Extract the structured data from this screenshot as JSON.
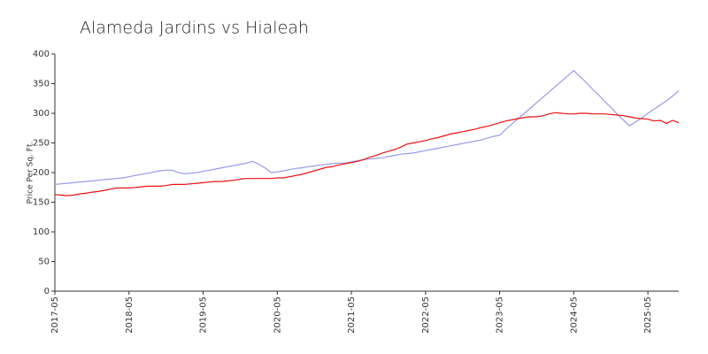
{
  "chart_data": {
    "type": "line",
    "title": "Alameda Jardins vs Hialeah",
    "y_label": "Price Per Sq. Ft.",
    "categories": [
      "2017-05",
      null,
      null,
      null,
      null,
      null,
      null,
      null,
      null,
      null,
      null,
      null,
      "2018-05",
      null,
      null,
      null,
      null,
      null,
      null,
      null,
      null,
      null,
      null,
      null,
      "2019-05",
      null,
      null,
      null,
      null,
      null,
      null,
      null,
      null,
      null,
      null,
      null,
      "2020-05",
      null,
      null,
      null,
      null,
      null,
      null,
      null,
      null,
      null,
      null,
      null,
      "2021-05",
      null,
      null,
      null,
      null,
      null,
      null,
      null,
      null,
      null,
      null,
      null,
      "2022-05",
      null,
      null,
      null,
      null,
      null,
      null,
      null,
      null,
      null,
      null,
      null,
      "2023-05",
      null,
      null,
      null,
      null,
      null,
      null,
      null,
      null,
      null,
      null,
      null,
      "2024-05",
      null,
      null,
      null,
      null,
      null,
      null,
      null,
      null,
      null,
      null,
      null,
      "2025-05",
      null,
      null,
      null,
      null,
      null
    ],
    "series": [
      {
        "color": "#9999ee",
        "values": [
          180,
          181,
          182,
          183,
          184,
          185,
          186,
          187,
          188,
          189,
          190,
          191,
          193,
          195,
          197,
          199,
          201,
          203,
          204,
          204,
          200,
          198,
          199,
          200,
          202,
          204,
          206,
          208,
          210,
          212,
          214,
          216,
          219,
          214,
          208,
          200,
          201,
          203,
          205,
          207,
          208,
          210,
          211,
          213,
          214,
          215,
          216,
          216,
          218,
          220,
          222,
          223,
          224,
          225,
          227,
          229,
          231,
          232,
          233,
          235,
          237,
          239,
          241,
          243,
          245,
          247,
          249,
          251,
          253,
          255,
          258,
          261,
          263,
          273,
          282,
          291,
          300,
          309,
          318,
          327,
          336,
          345,
          354,
          363,
          372,
          362,
          352,
          341,
          331,
          320,
          310,
          299,
          289,
          279,
          285,
          292,
          300,
          307,
          314,
          321,
          329,
          338
        ]
      },
      {
        "color": "#ee1111",
        "values": [
          163,
          162,
          161,
          162,
          164,
          165,
          167,
          168,
          170,
          172,
          174,
          174,
          174,
          175,
          176,
          177,
          177,
          177,
          178,
          180,
          180,
          180,
          181,
          182,
          183,
          184,
          185,
          185,
          186,
          187,
          189,
          190,
          190,
          190,
          190,
          190,
          191,
          191,
          193,
          195,
          197,
          200,
          203,
          206,
          209,
          210,
          213,
          215,
          217,
          219,
          222,
          226,
          229,
          233,
          236,
          239,
          243,
          248,
          250,
          252,
          254,
          257,
          259,
          262,
          265,
          267,
          269,
          271,
          273,
          276,
          278,
          281,
          284,
          287,
          289,
          291,
          293,
          294,
          294,
          296,
          299,
          301,
          300,
          299,
          299,
          300,
          300,
          299,
          299,
          299,
          298,
          297,
          296,
          294,
          292,
          291,
          290,
          287,
          288,
          283,
          288,
          284
        ]
      }
    ],
    "ylim": [
      0,
      400
    ],
    "yticks": [
      0,
      50,
      100,
      150,
      200,
      250,
      300,
      350,
      400
    ]
  }
}
